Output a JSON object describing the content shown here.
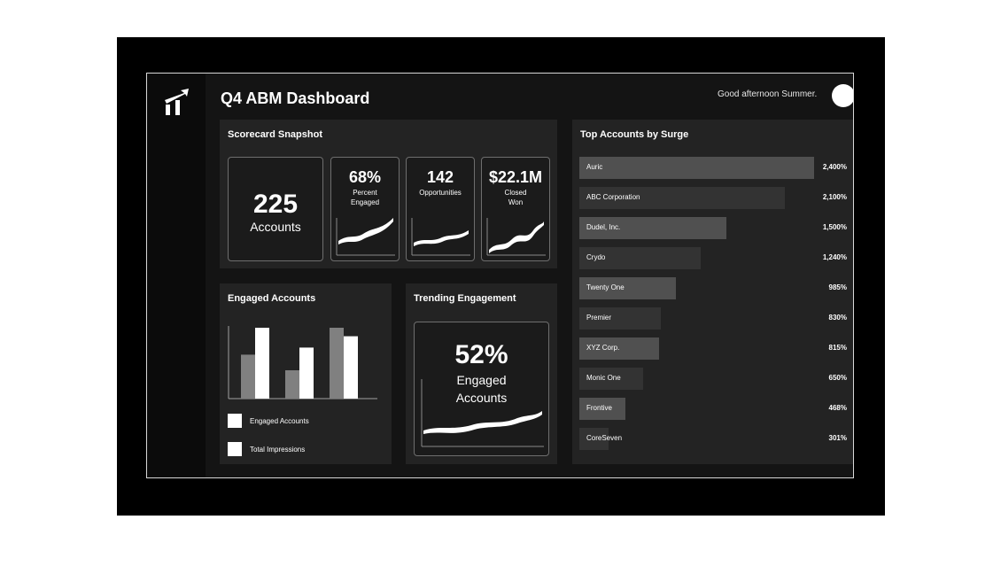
{
  "header": {
    "title": "Q4 ABM Dashboard",
    "greeting": "Good afternoon Summer."
  },
  "scorecard": {
    "title": "Scorecard Snapshot",
    "accounts": {
      "value": "225",
      "label": "Accounts"
    },
    "percent_engaged": {
      "value": "68%",
      "label_line1": "Percent",
      "label_line2": "Engaged"
    },
    "opportunities": {
      "value": "142",
      "label": "Opportunities"
    },
    "closed_won": {
      "value": "$22.1M",
      "label_line1": "Closed",
      "label_line2": "Won"
    }
  },
  "engaged_accounts": {
    "title": "Engaged Accounts",
    "legend": [
      {
        "label": "Engaged Accounts",
        "color": "#808080"
      },
      {
        "label": "Total Impressions",
        "color": "#ffffff"
      }
    ],
    "chart_data": {
      "type": "bar",
      "categories": [
        "",
        "",
        ""
      ],
      "series": [
        {
          "name": "Engaged Accounts",
          "values": [
            62,
            40,
            100
          ]
        },
        {
          "name": "Total Impressions",
          "values": [
            100,
            72,
            88
          ]
        }
      ],
      "ylim": [
        0,
        100
      ]
    }
  },
  "trending": {
    "title": "Trending Engagement",
    "value": "52%",
    "label_line1": "Engaged",
    "label_line2": "Accounts"
  },
  "top_accounts": {
    "title": "Top Accounts by Surge",
    "chart_data": {
      "type": "bar",
      "orientation": "horizontal",
      "categories": [
        "Auric",
        "ABC Corporation",
        "Dudel, Inc.",
        "Crydo",
        "Twenty One",
        "Premier",
        "XYZ Corp.",
        "Monic One",
        "Frontive",
        "CoreSeven"
      ],
      "values": [
        2400,
        2100,
        1500,
        1240,
        985,
        830,
        815,
        650,
        468,
        301
      ],
      "value_labels": [
        "2,400%",
        "2,100%",
        "1,500%",
        "1,240%",
        "985%",
        "830%",
        "815%",
        "650%",
        "468%",
        "301%"
      ],
      "max": 2400,
      "colors": [
        "#505050",
        "#333333",
        "#505050",
        "#333333",
        "#505050",
        "#333333",
        "#505050",
        "#333333",
        "#505050",
        "#333333"
      ]
    }
  }
}
